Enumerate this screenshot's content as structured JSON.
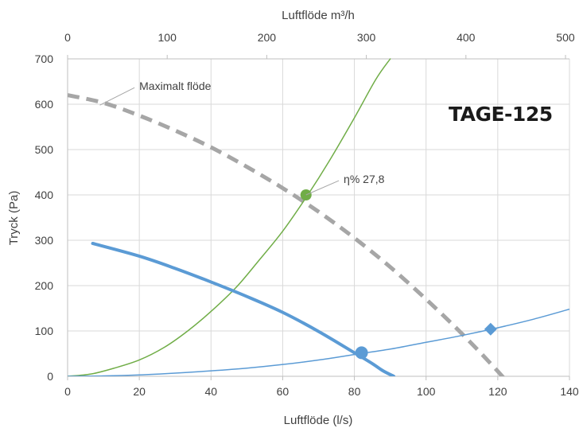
{
  "chart_data": {
    "type": "line",
    "model_label": "TAGE-125",
    "xlabel": "Luftflöde (l/s)",
    "x2label": "Luftflöde m³/h",
    "ylabel": "Tryck (Pa)",
    "xlim": [
      0,
      140
    ],
    "x2lim": [
      0,
      504
    ],
    "ylim": [
      0,
      700
    ],
    "x_ticks": [
      0,
      20,
      40,
      60,
      80,
      100,
      120,
      140
    ],
    "x_tick_labels": [
      "0",
      "20",
      "40",
      "60",
      "80",
      "100",
      "120",
      "140"
    ],
    "x2_ticks": [
      0,
      100,
      200,
      300,
      400,
      500
    ],
    "x2_tick_labels": [
      "0",
      "100",
      "200",
      "300",
      "400",
      "500"
    ],
    "y_ticks": [
      0,
      100,
      200,
      300,
      400,
      500,
      600,
      700
    ],
    "y_tick_labels": [
      "0",
      "100",
      "200",
      "300",
      "400",
      "500",
      "600",
      "700"
    ],
    "grid": true,
    "colors": {
      "grid": "#d9d9d9",
      "axis": "#bfbfbf",
      "max_flow": "#a6a6a6",
      "green": "#70ad47",
      "blue": "#5b9bd5"
    },
    "series": [
      {
        "name": "Maximalt flöde",
        "style": "dashed",
        "x": [
          0,
          10,
          20,
          30,
          40,
          50,
          60,
          70,
          80,
          90,
          100,
          110,
          120,
          130
        ],
        "y": [
          620,
          603,
          575,
          542,
          505,
          462,
          415,
          363,
          305,
          241,
          170,
          94,
          11,
          -80
        ]
      },
      {
        "style": "solid-thin",
        "x": [
          0,
          6.5,
          13,
          20,
          27,
          33.5,
          40,
          47,
          53,
          60,
          67,
          73,
          80,
          86,
          90
        ],
        "y": [
          0,
          5,
          18,
          36,
          64,
          100,
          143,
          196,
          252,
          320,
          400,
          475,
          570,
          655,
          700
        ]
      },
      {
        "style": "solid-thick",
        "x": [
          7,
          20,
          30,
          40,
          50,
          60,
          70,
          80,
          85,
          88,
          91
        ],
        "y": [
          293,
          265,
          238,
          208,
          176,
          141,
          99,
          52,
          28,
          12,
          0
        ]
      },
      {
        "style": "solid-thin",
        "x": [
          0,
          10,
          20,
          30,
          40,
          50,
          60,
          70,
          80,
          90,
          100,
          110,
          120,
          130,
          140
        ],
        "y": [
          0,
          0.8,
          3,
          7,
          12,
          18,
          26,
          36,
          48,
          60,
          75,
          90,
          107,
          126,
          148
        ]
      }
    ],
    "markers": [
      {
        "shape": "circle",
        "x": 66.5,
        "y": 400,
        "color": "#70ad47",
        "r": 7
      },
      {
        "shape": "circle",
        "x": 82,
        "y": 52,
        "color": "#5b9bd5",
        "r": 8
      },
      {
        "shape": "diamond",
        "x": 118,
        "y": 104,
        "color": "#5b9bd5",
        "r": 8
      }
    ],
    "annotations": [
      {
        "text": "Maximalt flöde",
        "x_tip": 9,
        "y_tip": 598,
        "x_text": 20,
        "y_text": 640
      },
      {
        "text": "η% 27,8",
        "x_tip": 66.5,
        "y_tip": 400,
        "x_text": 77,
        "y_text": 435
      }
    ]
  }
}
